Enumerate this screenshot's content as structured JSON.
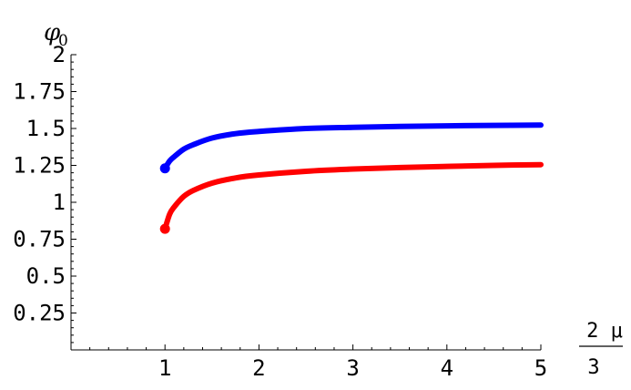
{
  "chart_data": {
    "type": "line",
    "title": "",
    "ylabel": "φ",
    "ylabel_sub": "0",
    "xlabel_numerator": "2 μ",
    "xlabel_denominator": "3",
    "xlim": [
      0,
      5
    ],
    "ylim": [
      0,
      2
    ],
    "grid": false,
    "legend": "none",
    "xticks": [
      {
        "value": 1,
        "label": "1"
      },
      {
        "value": 2,
        "label": "2"
      },
      {
        "value": 3,
        "label": "3"
      },
      {
        "value": 4,
        "label": "4"
      },
      {
        "value": 5,
        "label": "5"
      }
    ],
    "yticks": [
      {
        "value": 0.25,
        "label": "0.25"
      },
      {
        "value": 0.5,
        "label": "0.5"
      },
      {
        "value": 0.75,
        "label": "0.75"
      },
      {
        "value": 1,
        "label": "1"
      },
      {
        "value": 1.25,
        "label": "1.25"
      },
      {
        "value": 1.5,
        "label": "1.5"
      },
      {
        "value": 1.75,
        "label": "1.75"
      },
      {
        "value": 2,
        "label": "2"
      }
    ],
    "series": [
      {
        "color": "#0000ff",
        "start_marker": true,
        "x": [
          1,
          1.05,
          1.1,
          1.2,
          1.3,
          1.5,
          1.75,
          2,
          2.5,
          3,
          3.5,
          4,
          4.5,
          5
        ],
        "y": [
          1.23,
          1.28,
          1.31,
          1.36,
          1.39,
          1.435,
          1.465,
          1.48,
          1.5,
          1.508,
          1.514,
          1.518,
          1.521,
          1.523
        ]
      },
      {
        "color": "#ff0000",
        "start_marker": true,
        "x": [
          1,
          1.05,
          1.1,
          1.2,
          1.3,
          1.5,
          1.75,
          2,
          2.5,
          3,
          3.5,
          4,
          4.5,
          5
        ],
        "y": [
          0.82,
          0.92,
          0.97,
          1.04,
          1.08,
          1.13,
          1.165,
          1.185,
          1.21,
          1.225,
          1.235,
          1.243,
          1.25,
          1.255
        ]
      }
    ]
  }
}
